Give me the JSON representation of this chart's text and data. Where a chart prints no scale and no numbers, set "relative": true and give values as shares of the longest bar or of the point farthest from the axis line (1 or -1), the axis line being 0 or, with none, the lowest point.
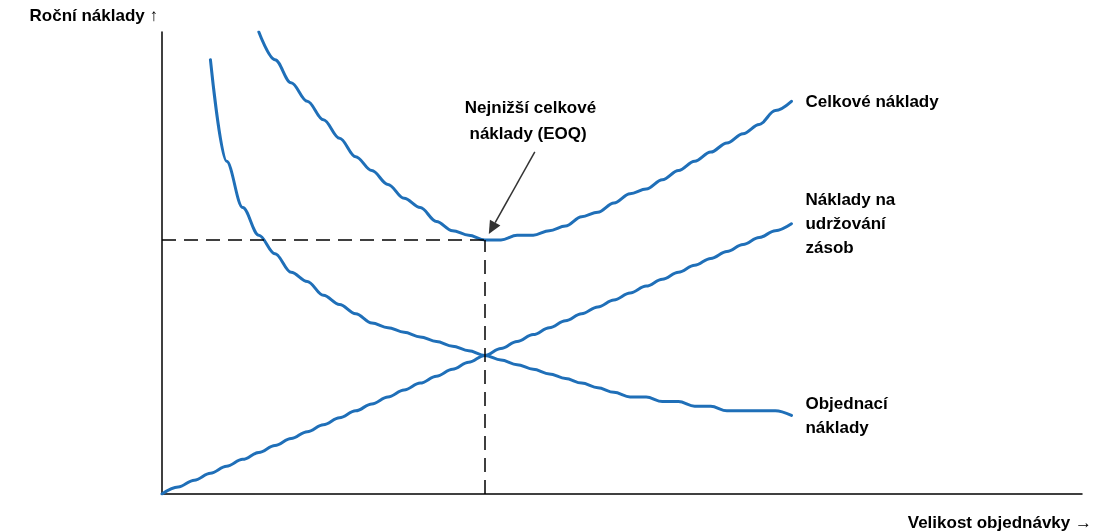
{
  "chart_data": {
    "type": "line",
    "relative": true,
    "xlabel": "Velikost objednávky →",
    "ylabel": "Roční náklady ↑",
    "marker": "none",
    "line_style": "solid",
    "categories": [
      null,
      null,
      null,
      null,
      null,
      null,
      null,
      null,
      null,
      null,
      null,
      null,
      null,
      null,
      null,
      null,
      null,
      null,
      null,
      null,
      null,
      null,
      null,
      null,
      null,
      null,
      null,
      null,
      null,
      null,
      null,
      null,
      null,
      null,
      null,
      null,
      null,
      null,
      null,
      null,
      null,
      null,
      null,
      null,
      null,
      null,
      null,
      null,
      null,
      null,
      null,
      null,
      null,
      null,
      null,
      null,
      null,
      null
    ],
    "series": [
      {
        "name": "Celkové náklady",
        "color": "#1f6fb8",
        "values": [
          null,
          null,
          null,
          null,
          null,
          null,
          1.0,
          0.94,
          0.89,
          0.85,
          0.81,
          0.77,
          0.73,
          0.7,
          0.67,
          0.64,
          0.62,
          0.59,
          0.57,
          0.56,
          0.55,
          0.55,
          0.56,
          0.56,
          0.57,
          0.58,
          0.6,
          0.61,
          0.63,
          0.65,
          0.66,
          0.68,
          0.7,
          0.72,
          0.74,
          0.76,
          0.78,
          0.8,
          0.83,
          0.85,
          null,
          null,
          null,
          null,
          null,
          null,
          null,
          null,
          null,
          null,
          null,
          null,
          null,
          null,
          null,
          null,
          null,
          null
        ]
      },
      {
        "name": "Náklady na udržování zásob",
        "color": "#1f6fb8",
        "values": [
          0,
          0.015,
          0.03,
          0.045,
          0.06,
          0.075,
          0.09,
          0.105,
          0.12,
          0.135,
          0.15,
          0.165,
          0.18,
          0.195,
          0.21,
          0.225,
          0.24,
          0.255,
          0.27,
          0.285,
          0.3,
          0.315,
          0.33,
          0.345,
          0.36,
          0.375,
          0.39,
          0.405,
          0.42,
          0.435,
          0.45,
          0.465,
          0.48,
          0.495,
          0.51,
          0.525,
          0.54,
          0.555,
          0.57,
          0.585,
          null,
          null,
          null,
          null,
          null,
          null,
          null,
          null,
          null,
          null,
          null,
          null,
          null,
          null,
          null,
          null,
          null,
          null
        ]
      },
      {
        "name": "Objednací náklady",
        "color": "#1f6fb8",
        "values": [
          null,
          null,
          null,
          0.94,
          0.72,
          0.62,
          0.56,
          0.52,
          0.48,
          0.46,
          0.43,
          0.41,
          0.39,
          0.37,
          0.36,
          0.35,
          0.34,
          0.33,
          0.32,
          0.31,
          0.3,
          0.29,
          0.28,
          0.27,
          0.26,
          0.25,
          0.24,
          0.23,
          0.22,
          0.21,
          0.21,
          0.2,
          0.2,
          0.19,
          0.19,
          0.18,
          0.18,
          0.18,
          0.18,
          0.17,
          null,
          null,
          null,
          null,
          null,
          null,
          null,
          null,
          null,
          null,
          null,
          null,
          null,
          null,
          null,
          null,
          null,
          null
        ]
      }
    ],
    "ref_lines": [
      {
        "axis": "y",
        "value": 0.55,
        "line_style": "dashed",
        "color": "#000000"
      }
    ],
    "annotations": [
      "Nejnižší celkové náklady (EOQ)"
    ]
  }
}
